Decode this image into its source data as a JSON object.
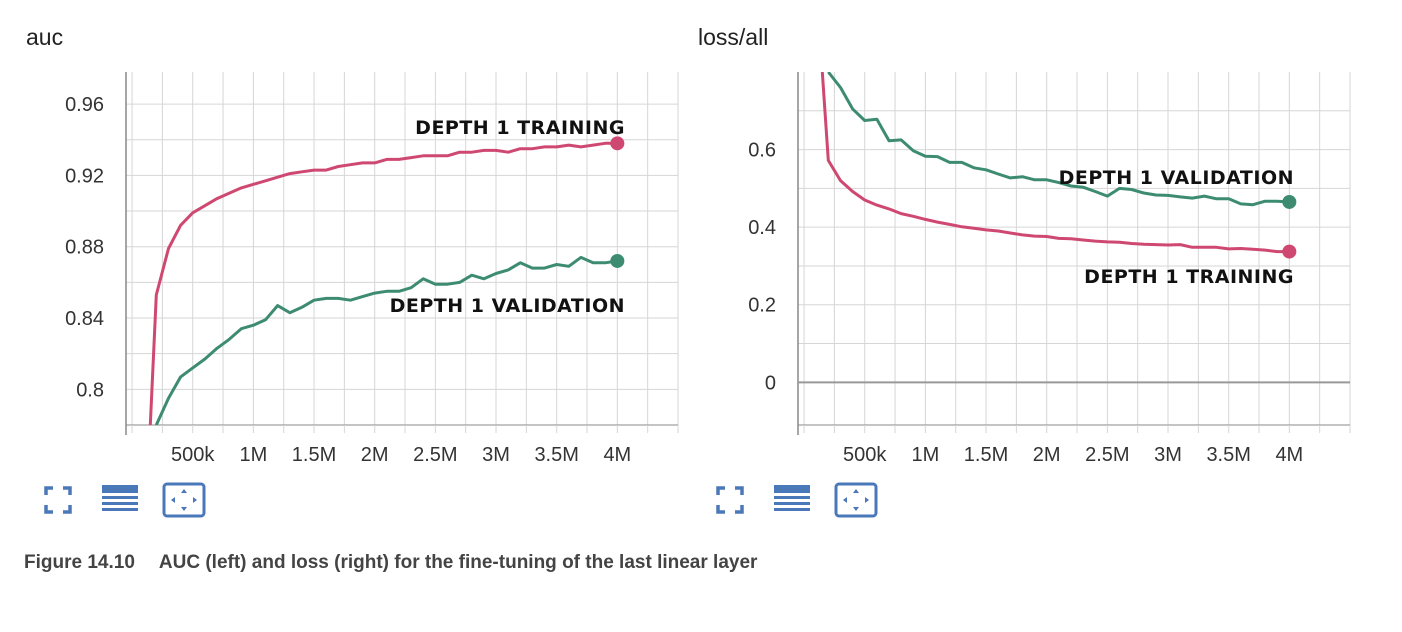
{
  "caption": {
    "figure_number": "Figure 14.10",
    "text": "AUC (left) and loss (right) for the fine-tuning of the last linear layer"
  },
  "toolbar_icons": [
    "fullscreen-icon",
    "data-table-icon",
    "fit-domain-icon"
  ],
  "colors": {
    "training": "#cf4871",
    "validation": "#3d8c72",
    "grid": "#d6d6d6",
    "axis": "#888888",
    "accent_icon": "#4a78b8"
  },
  "chart_data": [
    {
      "type": "line",
      "title": "auc",
      "xlabel": "",
      "ylabel": "",
      "xlim": [
        -0.05,
        4.5
      ],
      "ylim": [
        0.78,
        0.978
      ],
      "x_ticks": [
        0.5,
        1,
        1.5,
        2,
        2.5,
        3,
        3.5,
        4
      ],
      "x_tick_labels": [
        "500k",
        "1M",
        "1.5M",
        "2M",
        "2.5M",
        "3M",
        "3.5M",
        "4M"
      ],
      "x_grid": [
        0,
        0.25,
        0.5,
        0.75,
        1,
        1.25,
        1.5,
        1.75,
        2,
        2.25,
        2.5,
        2.75,
        3,
        3.25,
        3.5,
        3.75,
        4,
        4.25,
        4.5
      ],
      "y_ticks": [
        0.8,
        0.84,
        0.88,
        0.92,
        0.96
      ],
      "y_tick_labels": [
        "0.8",
        "0.84",
        "0.88",
        "0.92",
        "0.96"
      ],
      "y_grid": [
        0.8,
        0.82,
        0.84,
        0.86,
        0.88,
        0.9,
        0.92,
        0.94,
        0.96
      ],
      "grid": true,
      "series": [
        {
          "key": "training",
          "annotation": "DEPTH 1 TRAINING",
          "x": [
            0.15,
            0.2,
            0.3,
            0.4,
            0.5,
            0.6,
            0.7,
            0.8,
            0.9,
            1.0,
            1.1,
            1.2,
            1.3,
            1.4,
            1.5,
            1.6,
            1.7,
            1.8,
            1.9,
            2.0,
            2.1,
            2.2,
            2.3,
            2.4,
            2.5,
            2.6,
            2.7,
            2.8,
            2.9,
            3.0,
            3.1,
            3.2,
            3.3,
            3.4,
            3.5,
            3.6,
            3.7,
            3.8,
            3.9,
            4.0
          ],
          "y": [
            0.78,
            0.853,
            0.879,
            0.892,
            0.899,
            0.903,
            0.907,
            0.91,
            0.913,
            0.915,
            0.917,
            0.919,
            0.921,
            0.922,
            0.923,
            0.923,
            0.925,
            0.926,
            0.927,
            0.927,
            0.929,
            0.929,
            0.93,
            0.931,
            0.931,
            0.931,
            0.933,
            0.933,
            0.934,
            0.934,
            0.933,
            0.935,
            0.935,
            0.936,
            0.936,
            0.937,
            0.936,
            0.937,
            0.938,
            0.938
          ]
        },
        {
          "key": "validation",
          "annotation": "DEPTH 1 VALIDATION",
          "x": [
            0.2,
            0.3,
            0.4,
            0.5,
            0.6,
            0.7,
            0.8,
            0.9,
            1.0,
            1.1,
            1.2,
            1.3,
            1.4,
            1.5,
            1.6,
            1.7,
            1.8,
            1.9,
            2.0,
            2.1,
            2.2,
            2.3,
            2.4,
            2.5,
            2.6,
            2.7,
            2.8,
            2.9,
            3.0,
            3.1,
            3.2,
            3.3,
            3.4,
            3.5,
            3.6,
            3.7,
            3.8,
            3.9,
            4.0
          ],
          "y": [
            0.78,
            0.795,
            0.807,
            0.812,
            0.817,
            0.823,
            0.828,
            0.834,
            0.836,
            0.839,
            0.847,
            0.843,
            0.846,
            0.85,
            0.851,
            0.851,
            0.85,
            0.852,
            0.854,
            0.855,
            0.855,
            0.857,
            0.862,
            0.859,
            0.859,
            0.86,
            0.864,
            0.862,
            0.865,
            0.867,
            0.871,
            0.868,
            0.868,
            0.87,
            0.869,
            0.874,
            0.871,
            0.871,
            0.872
          ]
        }
      ]
    },
    {
      "type": "line",
      "title": "loss/all",
      "xlabel": "",
      "ylabel": "",
      "xlim": [
        -0.05,
        4.5
      ],
      "ylim": [
        -0.11,
        0.8
      ],
      "x_ticks": [
        0.5,
        1,
        1.5,
        2,
        2.5,
        3,
        3.5,
        4
      ],
      "x_tick_labels": [
        "500k",
        "1M",
        "1.5M",
        "2M",
        "2.5M",
        "3M",
        "3.5M",
        "4M"
      ],
      "x_grid": [
        0,
        0.25,
        0.5,
        0.75,
        1,
        1.25,
        1.5,
        1.75,
        2,
        2.25,
        2.5,
        2.75,
        3,
        3.25,
        3.5,
        3.75,
        4,
        4.25,
        4.5
      ],
      "y_ticks": [
        0,
        0.2,
        0.4,
        0.6
      ],
      "y_tick_labels": [
        "0",
        "0.2",
        "0.4",
        "0.6"
      ],
      "y_grid": [
        0,
        0.1,
        0.2,
        0.3,
        0.4,
        0.5,
        0.6,
        0.7
      ],
      "zero_line": true,
      "grid": true,
      "series": [
        {
          "key": "validation",
          "annotation": "DEPTH 1 VALIDATION",
          "x": [
            0.2,
            0.3,
            0.4,
            0.5,
            0.6,
            0.7,
            0.8,
            0.9,
            1.0,
            1.1,
            1.2,
            1.3,
            1.4,
            1.5,
            1.6,
            1.7,
            1.8,
            1.9,
            2.0,
            2.1,
            2.2,
            2.3,
            2.4,
            2.5,
            2.6,
            2.7,
            2.8,
            2.9,
            3.0,
            3.1,
            3.2,
            3.3,
            3.4,
            3.5,
            3.6,
            3.7,
            3.8,
            3.9,
            4.0
          ],
          "y": [
            0.8,
            0.76,
            0.705,
            0.675,
            0.678,
            0.623,
            0.625,
            0.597,
            0.583,
            0.582,
            0.567,
            0.567,
            0.553,
            0.548,
            0.537,
            0.527,
            0.53,
            0.522,
            0.522,
            0.515,
            0.506,
            0.503,
            0.492,
            0.48,
            0.5,
            0.497,
            0.488,
            0.483,
            0.482,
            0.478,
            0.475,
            0.48,
            0.473,
            0.473,
            0.46,
            0.458,
            0.467,
            0.467,
            0.465
          ]
        },
        {
          "key": "training",
          "annotation": "DEPTH 1 TRAINING",
          "x": [
            0.15,
            0.2,
            0.3,
            0.4,
            0.5,
            0.6,
            0.7,
            0.8,
            0.9,
            1.0,
            1.1,
            1.2,
            1.3,
            1.4,
            1.5,
            1.6,
            1.7,
            1.8,
            1.9,
            2.0,
            2.1,
            2.2,
            2.3,
            2.4,
            2.5,
            2.6,
            2.7,
            2.8,
            2.9,
            3.0,
            3.1,
            3.2,
            3.3,
            3.4,
            3.5,
            3.6,
            3.7,
            3.8,
            3.9,
            4.0
          ],
          "y": [
            0.8,
            0.572,
            0.52,
            0.492,
            0.47,
            0.457,
            0.447,
            0.435,
            0.428,
            0.42,
            0.413,
            0.407,
            0.401,
            0.397,
            0.393,
            0.39,
            0.385,
            0.38,
            0.377,
            0.376,
            0.371,
            0.37,
            0.367,
            0.364,
            0.362,
            0.361,
            0.358,
            0.356,
            0.355,
            0.354,
            0.355,
            0.348,
            0.348,
            0.348,
            0.344,
            0.345,
            0.343,
            0.341,
            0.337,
            0.337
          ]
        }
      ]
    }
  ]
}
